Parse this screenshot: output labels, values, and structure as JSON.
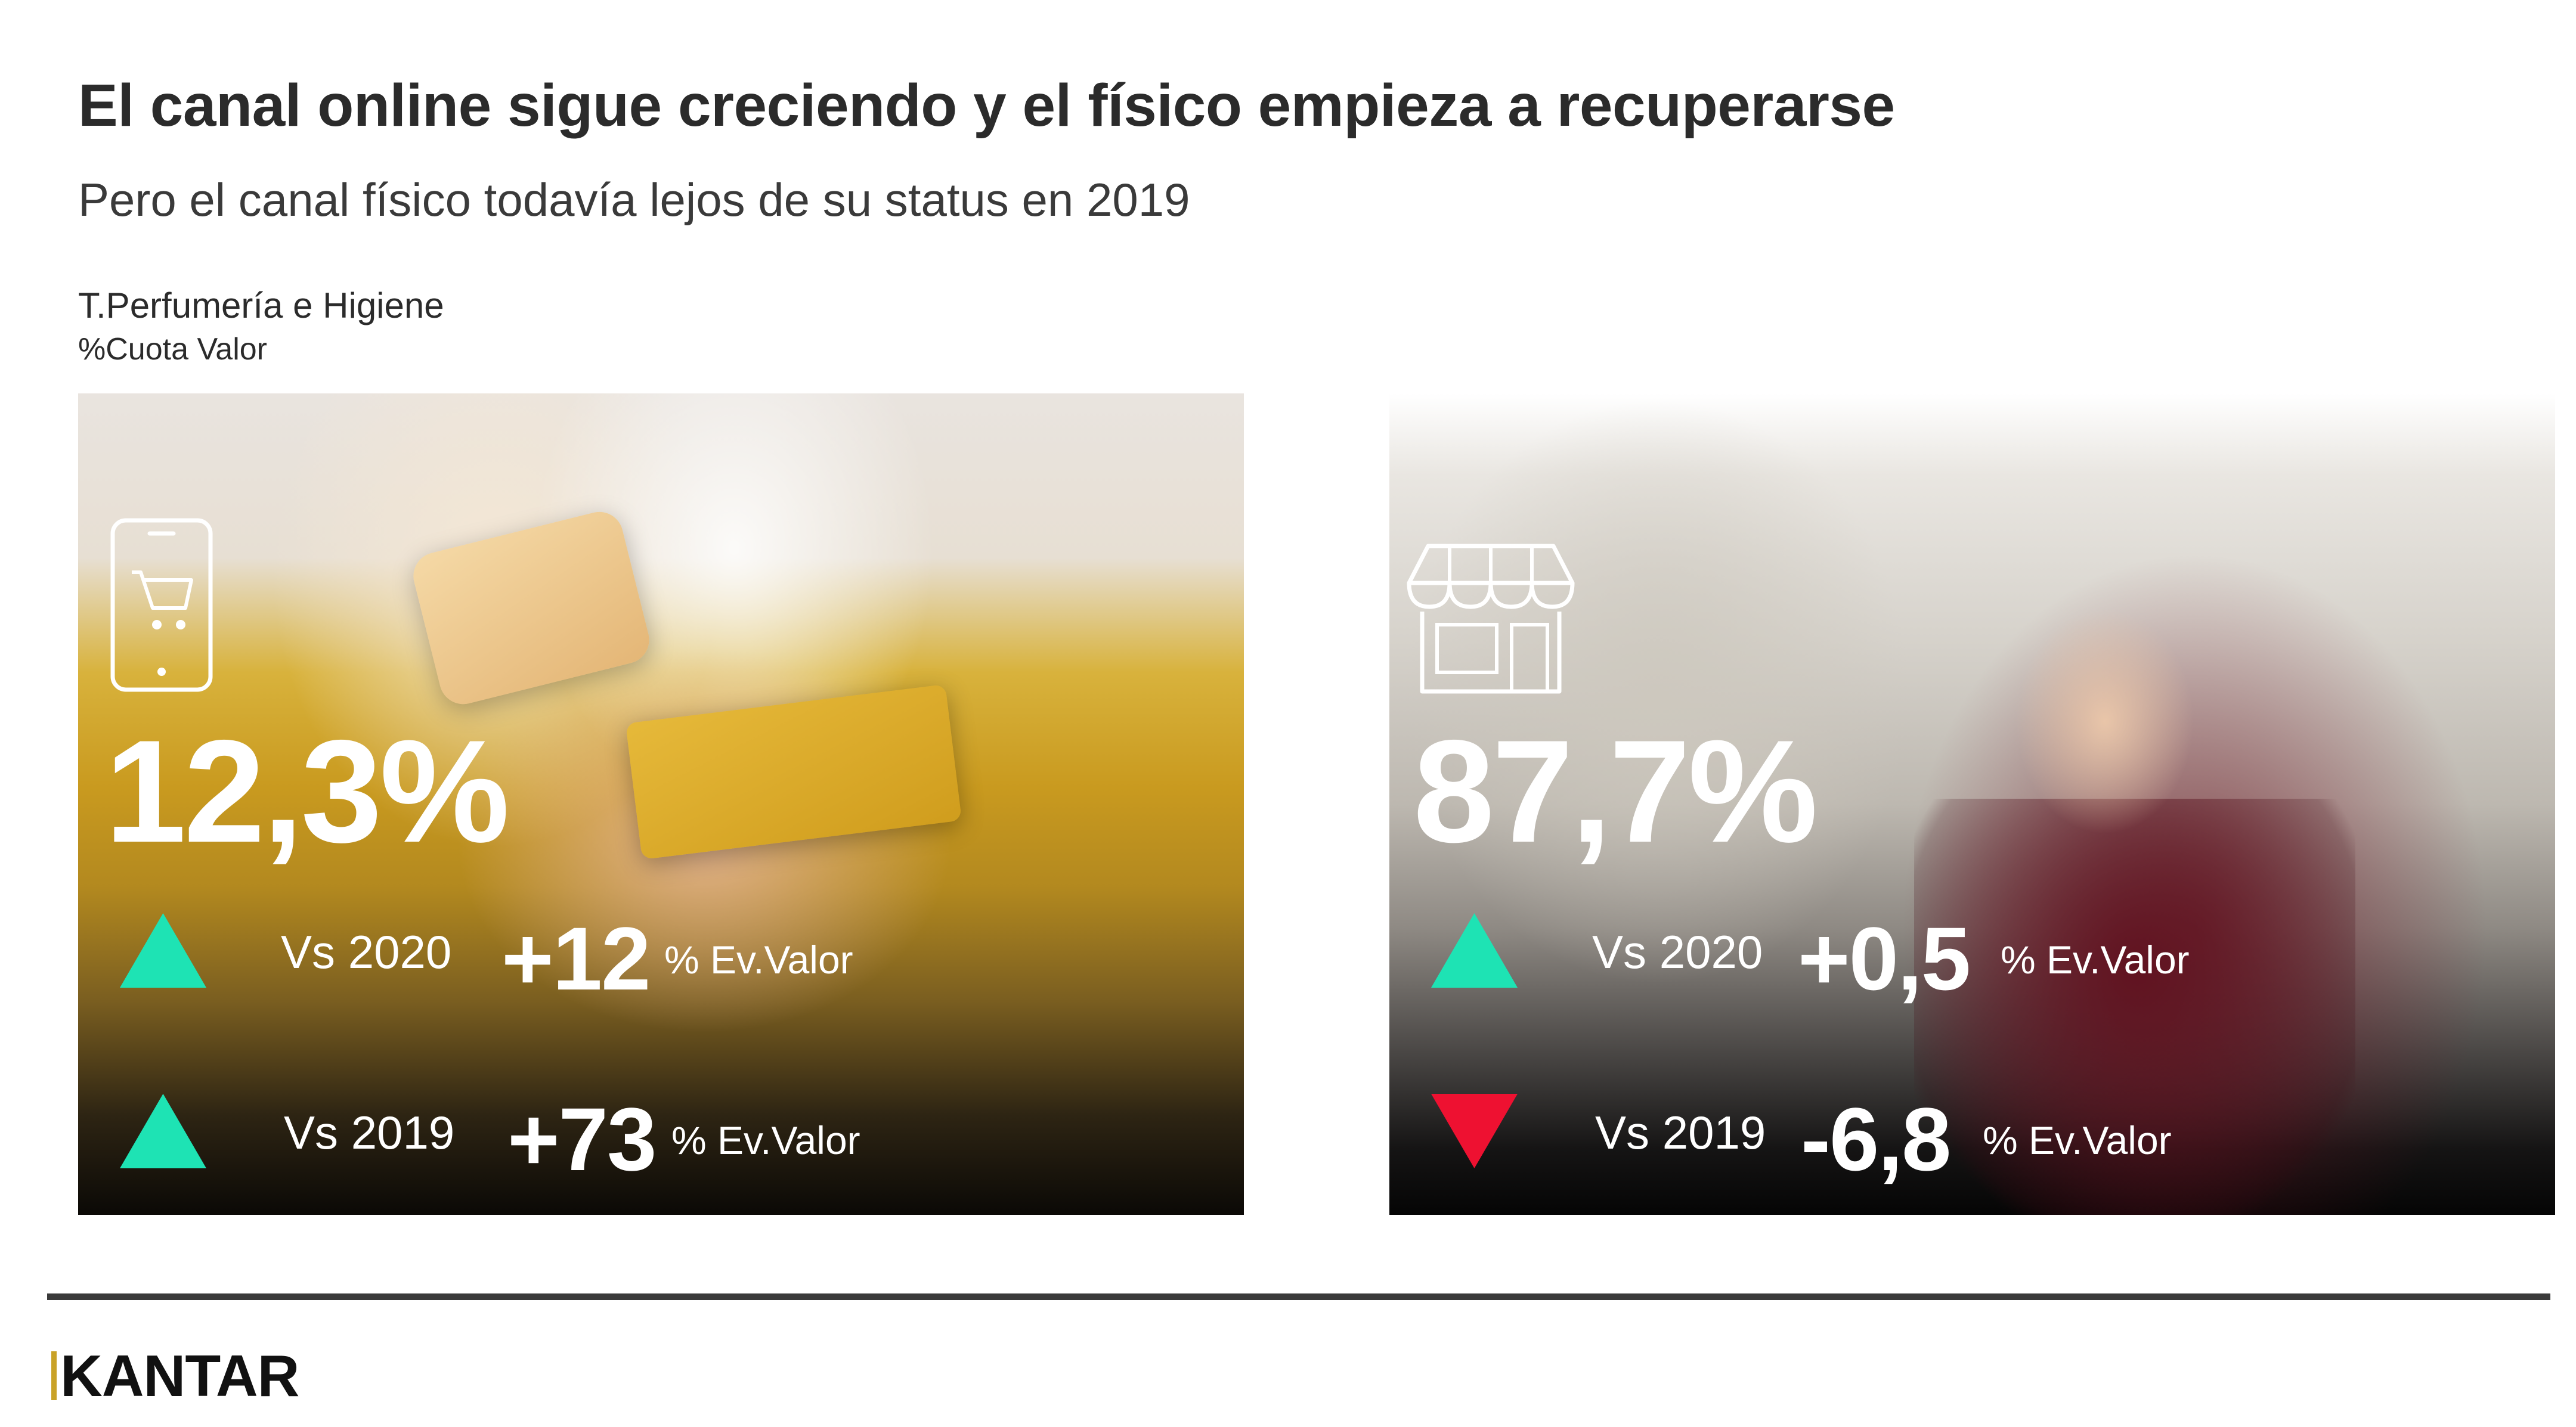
{
  "header": {
    "title": "El canal online sigue creciendo y el físico empieza a recuperarse",
    "subtitle": "Pero el canal físico todavía lejos de su status en 2019",
    "category": "T.Perfumería e Higiene",
    "measure": "%Cuota Valor"
  },
  "colors": {
    "up": "#1ee3b4",
    "down": "#ee1131",
    "logo_accent": "#c9a227"
  },
  "online": {
    "icon": "mobile-shopping-cart-icon",
    "share": "12,3%",
    "rows": [
      {
        "direction": "up",
        "vs": "Vs 2020",
        "value": "+12",
        "unit": "% Ev.Valor"
      },
      {
        "direction": "up",
        "vs": "Vs 2019",
        "value": "+73",
        "unit": "% Ev.Valor"
      }
    ]
  },
  "physical": {
    "icon": "storefront-icon",
    "share": "87,7%",
    "rows": [
      {
        "direction": "up",
        "vs": "Vs 2020",
        "value": "+0,5",
        "unit": "% Ev.Valor"
      },
      {
        "direction": "down",
        "vs": "Vs 2019",
        "value": "-6,8",
        "unit": "% Ev.Valor"
      }
    ]
  },
  "footer": {
    "logo": "KANTAR"
  }
}
